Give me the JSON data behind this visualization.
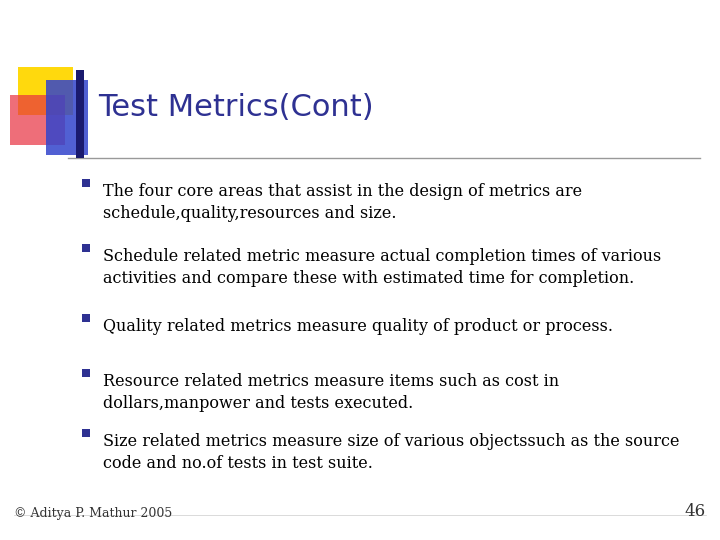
{
  "title": "Test Metrics(Cont)",
  "title_color": "#2E3192",
  "title_fontsize": 22,
  "background_color": "#FFFFFF",
  "bullet_color": "#2E3192",
  "text_color": "#000000",
  "bullet_points": [
    "The four core areas that assist in the design of metrics are\nschedule,quality,resources and size.",
    "Schedule related metric measure actual completion times of various\nactivities and compare these with estimated time for completion.",
    "Quality related metrics measure quality of product or process.",
    "Resource related metrics measure items such as cost in\ndollars,manpower and tests executed.",
    "Size related metrics measure size of various objectssuch as the source\ncode and no.of tests in test suite."
  ],
  "footer_text": "© Aditya P. Mathur 2005",
  "page_number": "46",
  "footer_fontsize": 9,
  "text_fontsize": 11.5,
  "line_color": "#999999"
}
